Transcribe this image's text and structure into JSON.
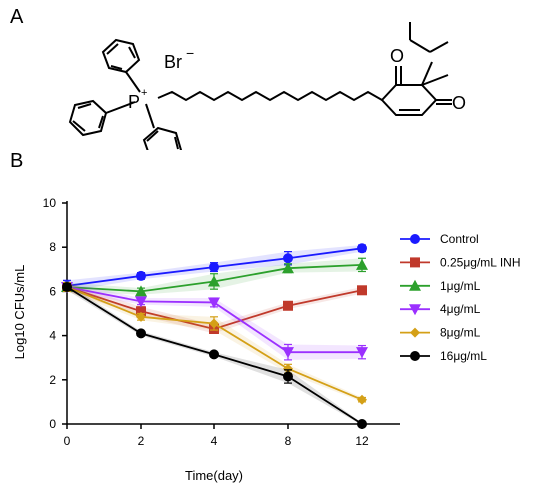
{
  "panels": {
    "a": "A",
    "b": "B"
  },
  "structure": {
    "counter_ion": "Br",
    "counter_ion_charge": "−",
    "phosphorus": "P",
    "phosphorus_charge": "+",
    "oxygen": "O"
  },
  "chart_data": {
    "type": "line",
    "xlabel": "Time(day)",
    "ylabel": "Log10 CFUs/mL",
    "x_categories": [
      "0",
      "2",
      "4",
      "8",
      "12"
    ],
    "y_ticks": [
      0,
      2,
      4,
      6,
      8,
      10
    ],
    "ylim": [
      0,
      10
    ],
    "legend_position": "right",
    "series": [
      {
        "name": "Control",
        "color": "#1a1aff",
        "marker": "circle",
        "values": [
          6.25,
          6.7,
          7.1,
          7.5,
          7.95
        ],
        "errors": [
          0.25,
          0.15,
          0.2,
          0.3,
          0.15
        ]
      },
      {
        "name": "0.25μg/mL INH",
        "color": "#c0392b",
        "marker": "square",
        "values": [
          6.2,
          5.1,
          4.3,
          5.35,
          6.05
        ],
        "errors": [
          0.2,
          0.2,
          0.2,
          0.15,
          0.15
        ]
      },
      {
        "name": "1μg/mL",
        "color": "#2ca02c",
        "marker": "triangle-up",
        "values": [
          6.2,
          6.0,
          6.45,
          7.05,
          7.2
        ],
        "errors": [
          0.2,
          0.15,
          0.35,
          0.2,
          0.3
        ]
      },
      {
        "name": "4μg/mL",
        "color": "#9b30ff",
        "marker": "triangle-down",
        "values": [
          6.2,
          5.55,
          5.5,
          3.25,
          3.25
        ],
        "errors": [
          0.2,
          0.15,
          0.2,
          0.35,
          0.3
        ]
      },
      {
        "name": "8μg/mL",
        "color": "#d4a017",
        "marker": "diamond",
        "values": [
          6.2,
          4.85,
          4.55,
          2.5,
          1.1
        ],
        "errors": [
          0.2,
          0.15,
          0.3,
          0.2,
          0.1
        ]
      },
      {
        "name": "16μg/mL",
        "color": "#000000",
        "marker": "circle",
        "values": [
          6.2,
          4.1,
          3.15,
          2.15,
          0.0
        ],
        "errors": [
          0.15,
          0.1,
          0.1,
          0.3,
          0.05
        ]
      }
    ]
  }
}
